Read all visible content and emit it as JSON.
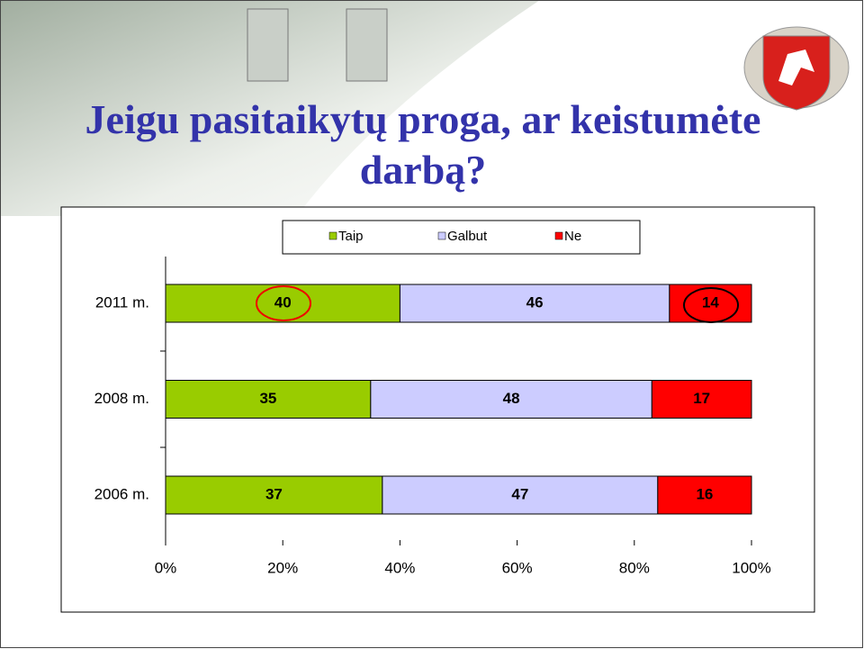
{
  "chart_data": {
    "type": "stacked-bar-horizontal",
    "title": "Jeigu pasitaikytų proga, ar keistumėte darbą?",
    "categories": [
      "2011 m.",
      "2008 m.",
      "2006 m."
    ],
    "series": [
      {
        "name": "Taip",
        "color": "#99cc00",
        "values": [
          40,
          35,
          37
        ]
      },
      {
        "name": "Galbut",
        "color": "#ccccff",
        "values": [
          46,
          48,
          47
        ]
      },
      {
        "name": "Ne",
        "color": "#ff0000",
        "values": [
          14,
          17,
          16
        ]
      }
    ],
    "xlim": [
      0,
      100
    ],
    "xticks": [
      {
        "value": 0,
        "label": "0%"
      },
      {
        "value": 20,
        "label": "20%"
      },
      {
        "value": 40,
        "label": "40%"
      },
      {
        "value": 60,
        "label": "60%"
      },
      {
        "value": 80,
        "label": "80%"
      },
      {
        "value": 100,
        "label": "100%"
      }
    ],
    "legend": "top"
  }
}
